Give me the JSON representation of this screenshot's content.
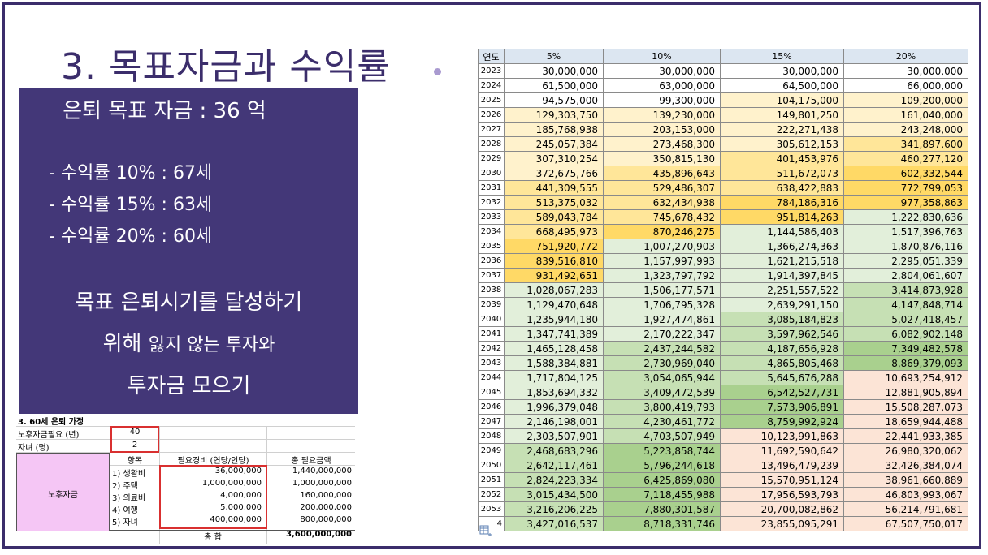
{
  "slide": {
    "title": "3. 목표자금과 수익률",
    "panel": {
      "heading": "은퇴 목표 자금 : 36 억",
      "bullets": [
        "- 수익률 10% : 67세",
        "- 수익률 15% : 63세",
        "- 수익률 20% : 60세"
      ],
      "closing_line1": "목표 은퇴시기를 달성하기",
      "closing_line2a": "위해",
      "closing_line2b": "잃지 않는 투자와",
      "closing_line3": "투자금 모으기"
    }
  },
  "retirement_sheet": {
    "title": "3. 60세 은퇴 가정",
    "years_label": "노후자금필요 (년)",
    "years_value": "40",
    "children_label": "자녀 (명)",
    "children_value": "2",
    "headers": [
      "항목",
      "필요경비 (연당/인당)",
      "총 필요금액"
    ],
    "group_label": "노후자금",
    "rows": [
      {
        "item": "1) 생활비",
        "cost": "36,000,000",
        "total": "1,440,000,000"
      },
      {
        "item": "2) 주택",
        "cost": "1,000,000,000",
        "total": "1,000,000,000"
      },
      {
        "item": "3) 의료비",
        "cost": "4,000,000",
        "total": "160,000,000"
      },
      {
        "item": "4) 여행",
        "cost": "5,000,000",
        "total": "200,000,000"
      },
      {
        "item": "5) 자녀",
        "cost": "400,000,000",
        "total": "800,000,000"
      }
    ],
    "sum_label": "총 합",
    "sum_value": "3,600,000,000"
  },
  "growth_table": {
    "headers": [
      "연도",
      "5%",
      "10%",
      "15%",
      "20%"
    ],
    "last_year_partial": "4",
    "rows": [
      {
        "year": "2023",
        "v": [
          "30,000,000",
          "30,000,000",
          "30,000,000",
          "30,000,000"
        ]
      },
      {
        "year": "2024",
        "v": [
          "61,500,000",
          "63,000,000",
          "64,500,000",
          "66,000,000"
        ]
      },
      {
        "year": "2025",
        "v": [
          "94,575,000",
          "99,300,000",
          "104,175,000",
          "109,200,000"
        ]
      },
      {
        "year": "2026",
        "v": [
          "129,303,750",
          "139,230,000",
          "149,801,250",
          "161,040,000"
        ]
      },
      {
        "year": "2027",
        "v": [
          "185,768,938",
          "203,153,000",
          "222,271,438",
          "243,248,000"
        ]
      },
      {
        "year": "2028",
        "v": [
          "245,057,384",
          "273,468,300",
          "305,612,153",
          "341,897,600"
        ]
      },
      {
        "year": "2029",
        "v": [
          "307,310,254",
          "350,815,130",
          "401,453,976",
          "460,277,120"
        ]
      },
      {
        "year": "2030",
        "v": [
          "372,675,766",
          "435,896,643",
          "511,672,073",
          "602,332,544"
        ]
      },
      {
        "year": "2031",
        "v": [
          "441,309,555",
          "529,486,307",
          "638,422,883",
          "772,799,053"
        ]
      },
      {
        "year": "2032",
        "v": [
          "513,375,032",
          "632,434,938",
          "784,186,316",
          "977,358,863"
        ]
      },
      {
        "year": "2033",
        "v": [
          "589,043,784",
          "745,678,432",
          "951,814,263",
          "1,222,830,636"
        ]
      },
      {
        "year": "2034",
        "v": [
          "668,495,973",
          "870,246,275",
          "1,144,586,403",
          "1,517,396,763"
        ]
      },
      {
        "year": "2035",
        "v": [
          "751,920,772",
          "1,007,270,903",
          "1,366,274,363",
          "1,870,876,116"
        ]
      },
      {
        "year": "2036",
        "v": [
          "839,516,810",
          "1,157,997,993",
          "1,621,215,518",
          "2,295,051,339"
        ]
      },
      {
        "year": "2037",
        "v": [
          "931,492,651",
          "1,323,797,792",
          "1,914,397,845",
          "2,804,061,607"
        ]
      },
      {
        "year": "2038",
        "v": [
          "1,028,067,283",
          "1,506,177,571",
          "2,251,557,522",
          "3,414,873,928"
        ]
      },
      {
        "year": "2039",
        "v": [
          "1,129,470,648",
          "1,706,795,328",
          "2,639,291,150",
          "4,147,848,714"
        ]
      },
      {
        "year": "2040",
        "v": [
          "1,235,944,180",
          "1,927,474,861",
          "3,085,184,823",
          "5,027,418,457"
        ]
      },
      {
        "year": "2041",
        "v": [
          "1,347,741,389",
          "2,170,222,347",
          "3,597,962,546",
          "6,082,902,148"
        ]
      },
      {
        "year": "2042",
        "v": [
          "1,465,128,458",
          "2,437,244,582",
          "4,187,656,928",
          "7,349,482,578"
        ]
      },
      {
        "year": "2043",
        "v": [
          "1,588,384,881",
          "2,730,969,040",
          "4,865,805,468",
          "8,869,379,093"
        ]
      },
      {
        "year": "2044",
        "v": [
          "1,717,804,125",
          "3,054,065,944",
          "5,645,676,288",
          "10,693,254,912"
        ]
      },
      {
        "year": "2045",
        "v": [
          "1,853,694,332",
          "3,409,472,539",
          "6,542,527,731",
          "12,881,905,894"
        ]
      },
      {
        "year": "2046",
        "v": [
          "1,996,379,048",
          "3,800,419,793",
          "7,573,906,891",
          "15,508,287,073"
        ]
      },
      {
        "year": "2047",
        "v": [
          "2,146,198,001",
          "4,230,461,772",
          "8,759,992,924",
          "18,659,944,488"
        ]
      },
      {
        "year": "2048",
        "v": [
          "2,303,507,901",
          "4,703,507,949",
          "10,123,991,863",
          "22,441,933,385"
        ]
      },
      {
        "year": "2049",
        "v": [
          "2,468,683,296",
          "5,223,858,744",
          "11,692,590,642",
          "26,980,320,062"
        ]
      },
      {
        "year": "2050",
        "v": [
          "2,642,117,461",
          "5,796,244,618",
          "13,496,479,239",
          "32,426,384,074"
        ]
      },
      {
        "year": "2051",
        "v": [
          "2,824,223,334",
          "6,425,869,080",
          "15,570,951,124",
          "38,961,660,889"
        ]
      },
      {
        "year": "2052",
        "v": [
          "3,015,434,500",
          "7,118,455,988",
          "17,956,593,793",
          "46,803,993,067"
        ]
      },
      {
        "year": "2053",
        "v": [
          "3,216,206,225",
          "7,880,301,587",
          "20,700,082,862",
          "56,214,791,681"
        ]
      },
      {
        "year": "",
        "v": [
          "3,427,016,537",
          "8,718,331,746",
          "23,855,095,291",
          "67,507,750,017"
        ]
      }
    ]
  },
  "colors": {
    "title": "#3b2d6b",
    "panel_bg": "#433778",
    "yellow_light": "#fff2cc",
    "yellow_mid": "#ffe699",
    "yellow_strong": "#ffd966",
    "green_light": "#e2efda",
    "green_mid": "#c6e0b4",
    "green_strong": "#a9d08e",
    "pink": "#fce4d6",
    "magenta_cell": "#f5c6f5",
    "red_border": "#d93030"
  }
}
